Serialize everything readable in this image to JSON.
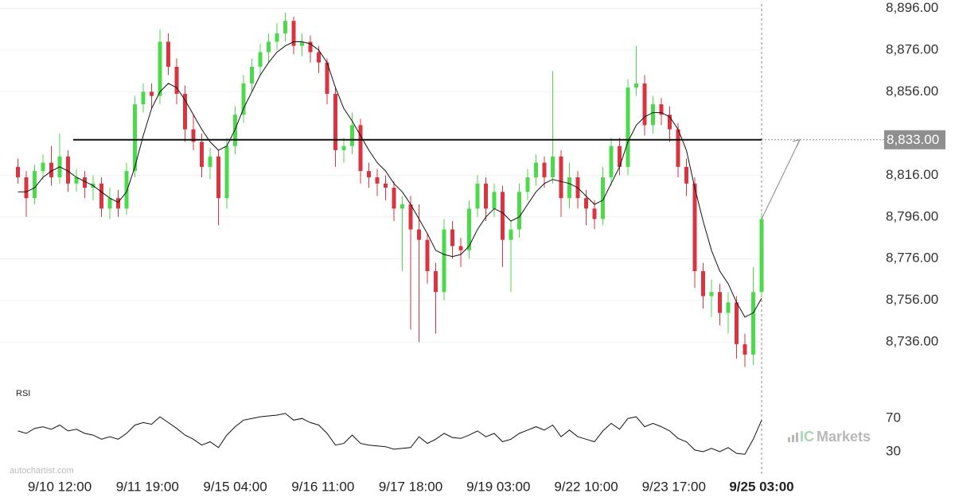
{
  "chart_data": [
    {
      "type": "candlestick",
      "xlim": [
        0,
        90
      ],
      "xticks": [
        {
          "value": 6,
          "label": "9/10 12:00"
        },
        {
          "value": 16.5,
          "label": "9/11 19:00"
        },
        {
          "value": 27,
          "label": "9/15 04:00"
        },
        {
          "value": 37.5,
          "label": "9/16 11:00"
        },
        {
          "value": 48,
          "label": "9/17 18:00"
        },
        {
          "value": 58.5,
          "label": "9/19 03:00"
        },
        {
          "value": 69,
          "label": "9/22 10:00"
        },
        {
          "value": 79.5,
          "label": "9/23 17:00"
        },
        {
          "value": 90,
          "label": "9/25 03:00"
        }
      ],
      "ylim": [
        8717,
        8900
      ],
      "yticks": [
        {
          "value": 8736,
          "label": "8,736.00"
        },
        {
          "value": 8756,
          "label": "8,756.00"
        },
        {
          "value": 8776,
          "label": "8,776.00"
        },
        {
          "value": 8796,
          "label": "8,796.00"
        },
        {
          "value": 8816,
          "label": "8,816.00"
        },
        {
          "value": 8856,
          "label": "8,856.00"
        },
        {
          "value": 8876,
          "label": "8,876.00"
        },
        {
          "value": 8896,
          "label": "8,896.00"
        }
      ],
      "grid": true,
      "up_color": "#4cd94c",
      "down_color": "#d9343f",
      "ohlc": [
        [
          8820,
          8824,
          8812,
          8815
        ],
        [
          8815,
          8818,
          8796,
          8805
        ],
        [
          8805,
          8821,
          8802,
          8818
        ],
        [
          8818,
          8826,
          8814,
          8822
        ],
        [
          8822,
          8830,
          8811,
          8815
        ],
        [
          8815,
          8836,
          8812,
          8825
        ],
        [
          8825,
          8828,
          8808,
          8812
        ],
        [
          8812,
          8819,
          8808,
          8815
        ],
        [
          8815,
          8818,
          8805,
          8810
        ],
        [
          8810,
          8816,
          8804,
          8812
        ],
        [
          8812,
          8815,
          8796,
          8800
        ],
        [
          8800,
          8810,
          8795,
          8805
        ],
        [
          8805,
          8809,
          8796,
          8800
        ],
        [
          8800,
          8822,
          8797,
          8818
        ],
        [
          8818,
          8854,
          8815,
          8850
        ],
        [
          8850,
          8860,
          8846,
          8856
        ],
        [
          8856,
          8860,
          8848,
          8854
        ],
        [
          8854,
          8886,
          8850,
          8880
        ],
        [
          8880,
          8884,
          8864,
          8868
        ],
        [
          8868,
          8872,
          8850,
          8855
        ],
        [
          8855,
          8859,
          8832,
          8838
        ],
        [
          8838,
          8845,
          8828,
          8832
        ],
        [
          8832,
          8836,
          8815,
          8820
        ],
        [
          8820,
          8829,
          8814,
          8825
        ],
        [
          8825,
          8828,
          8792,
          8805
        ],
        [
          8805,
          8834,
          8800,
          8830
        ],
        [
          8830,
          8849,
          8826,
          8845
        ],
        [
          8845,
          8864,
          8841,
          8860
        ],
        [
          8860,
          8872,
          8856,
          8868
        ],
        [
          8868,
          8879,
          8864,
          8875
        ],
        [
          8875,
          8884,
          8870,
          8880
        ],
        [
          8880,
          8889,
          8876,
          8884
        ],
        [
          8884,
          8894,
          8880,
          8890
        ],
        [
          8890,
          8892,
          8874,
          8878
        ],
        [
          8878,
          8884,
          8873,
          8880
        ],
        [
          8880,
          8883,
          8870,
          8875
        ],
        [
          8875,
          8878,
          8865,
          8870
        ],
        [
          8870,
          8872,
          8850,
          8855
        ],
        [
          8855,
          8858,
          8820,
          8828
        ],
        [
          8828,
          8834,
          8822,
          8830
        ],
        [
          8830,
          8846,
          8826,
          8840
        ],
        [
          8840,
          8843,
          8812,
          8818
        ],
        [
          8818,
          8822,
          8810,
          8815
        ],
        [
          8815,
          8819,
          8806,
          8812
        ],
        [
          8812,
          8816,
          8804,
          8810
        ],
        [
          8810,
          8813,
          8794,
          8800
        ],
        [
          8800,
          8806,
          8770,
          8802
        ],
        [
          8802,
          8806,
          8742,
          8790
        ],
        [
          8790,
          8802,
          8736,
          8785
        ],
        [
          8785,
          8788,
          8764,
          8770
        ],
        [
          8770,
          8774,
          8740,
          8760
        ],
        [
          8760,
          8795,
          8756,
          8790
        ],
        [
          8790,
          8794,
          8776,
          8782
        ],
        [
          8782,
          8786,
          8772,
          8780
        ],
        [
          8780,
          8804,
          8776,
          8800
        ],
        [
          8800,
          8816,
          8796,
          8812
        ],
        [
          8812,
          8815,
          8794,
          8800
        ],
        [
          8800,
          8812,
          8796,
          8808
        ],
        [
          8808,
          8811,
          8772,
          8785
        ],
        [
          8785,
          8794,
          8760,
          8790
        ],
        [
          8790,
          8812,
          8786,
          8808
        ],
        [
          8808,
          8819,
          8804,
          8815
        ],
        [
          8815,
          8826,
          8811,
          8822
        ],
        [
          8822,
          8825,
          8810,
          8815
        ],
        [
          8815,
          8866,
          8812,
          8825
        ],
        [
          8825,
          8828,
          8796,
          8805
        ],
        [
          8805,
          8822,
          8800,
          8815
        ],
        [
          8815,
          8818,
          8800,
          8805
        ],
        [
          8805,
          8809,
          8792,
          8800
        ],
        [
          8800,
          8804,
          8790,
          8795
        ],
        [
          8795,
          8820,
          8792,
          8815
        ],
        [
          8815,
          8834,
          8811,
          8830
        ],
        [
          8830,
          8834,
          8816,
          8820
        ],
        [
          8820,
          8862,
          8816,
          8858
        ],
        [
          8858,
          8878,
          8854,
          8860
        ],
        [
          8860,
          8864,
          8835,
          8840
        ],
        [
          8840,
          8854,
          8836,
          8850
        ],
        [
          8850,
          8853,
          8840,
          8845
        ],
        [
          8845,
          8849,
          8832,
          8838
        ],
        [
          8838,
          8841,
          8815,
          8820
        ],
        [
          8820,
          8824,
          8806,
          8812
        ],
        [
          8812,
          8815,
          8762,
          8770
        ],
        [
          8770,
          8774,
          8752,
          8758
        ],
        [
          8758,
          8766,
          8748,
          8760
        ],
        [
          8760,
          8764,
          8744,
          8750
        ],
        [
          8750,
          8760,
          8740,
          8755
        ],
        [
          8755,
          8758,
          8728,
          8735
        ],
        [
          8735,
          8740,
          8724,
          8730
        ],
        [
          8730,
          8772,
          8725,
          8760
        ],
        [
          8760,
          8798,
          8758,
          8795
        ]
      ],
      "moving_average": {
        "color": "#111111",
        "values": [
          8808,
          8808,
          8810,
          8815,
          8818,
          8820,
          8818,
          8815,
          8813,
          8811,
          8808,
          8805,
          8803,
          8808,
          8820,
          8835,
          8848,
          8856,
          8860,
          8858,
          8852,
          8845,
          8838,
          8832,
          8828,
          8830,
          8838,
          8848,
          8856,
          8864,
          8870,
          8875,
          8878,
          8880,
          8880,
          8879,
          8876,
          8870,
          8858,
          8848,
          8842,
          8835,
          8828,
          8822,
          8818,
          8812,
          8808,
          8802,
          8795,
          8788,
          8780,
          8778,
          8777,
          8778,
          8782,
          8790,
          8796,
          8800,
          8798,
          8794,
          8796,
          8802,
          8808,
          8812,
          8814,
          8813,
          8812,
          8810,
          8806,
          8802,
          8804,
          8812,
          8820,
          8832,
          8840,
          8844,
          8846,
          8846,
          8844,
          8838,
          8828,
          8810,
          8794,
          8780,
          8770,
          8764,
          8755,
          8748,
          8750,
          8757
        ]
      },
      "level": {
        "value": 8833,
        "label": "8,833.00"
      }
    },
    {
      "type": "line",
      "title": "RSI",
      "color": "#111111",
      "xlim": [
        0,
        90
      ],
      "ylim": [
        9,
        95
      ],
      "yticks": [
        30,
        70
      ],
      "values": [
        55,
        52,
        58,
        60,
        57,
        62,
        55,
        57,
        52,
        50,
        45,
        48,
        45,
        52,
        62,
        65,
        63,
        72,
        65,
        58,
        50,
        45,
        38,
        42,
        35,
        50,
        60,
        68,
        70,
        72,
        73,
        74,
        76,
        68,
        70,
        65,
        62,
        52,
        38,
        40,
        50,
        40,
        38,
        37,
        36,
        33,
        34,
        35,
        48,
        40,
        45,
        52,
        47,
        46,
        50,
        55,
        48,
        52,
        42,
        45,
        52,
        56,
        60,
        56,
        62,
        48,
        56,
        48,
        45,
        42,
        55,
        64,
        57,
        70,
        72,
        60,
        64,
        60,
        55,
        46,
        42,
        32,
        30,
        34,
        30,
        35,
        28,
        27,
        45,
        68
      ]
    }
  ],
  "watermark": "autochartist.com",
  "brand": {
    "prefix": "IC",
    "name": "Markets"
  }
}
